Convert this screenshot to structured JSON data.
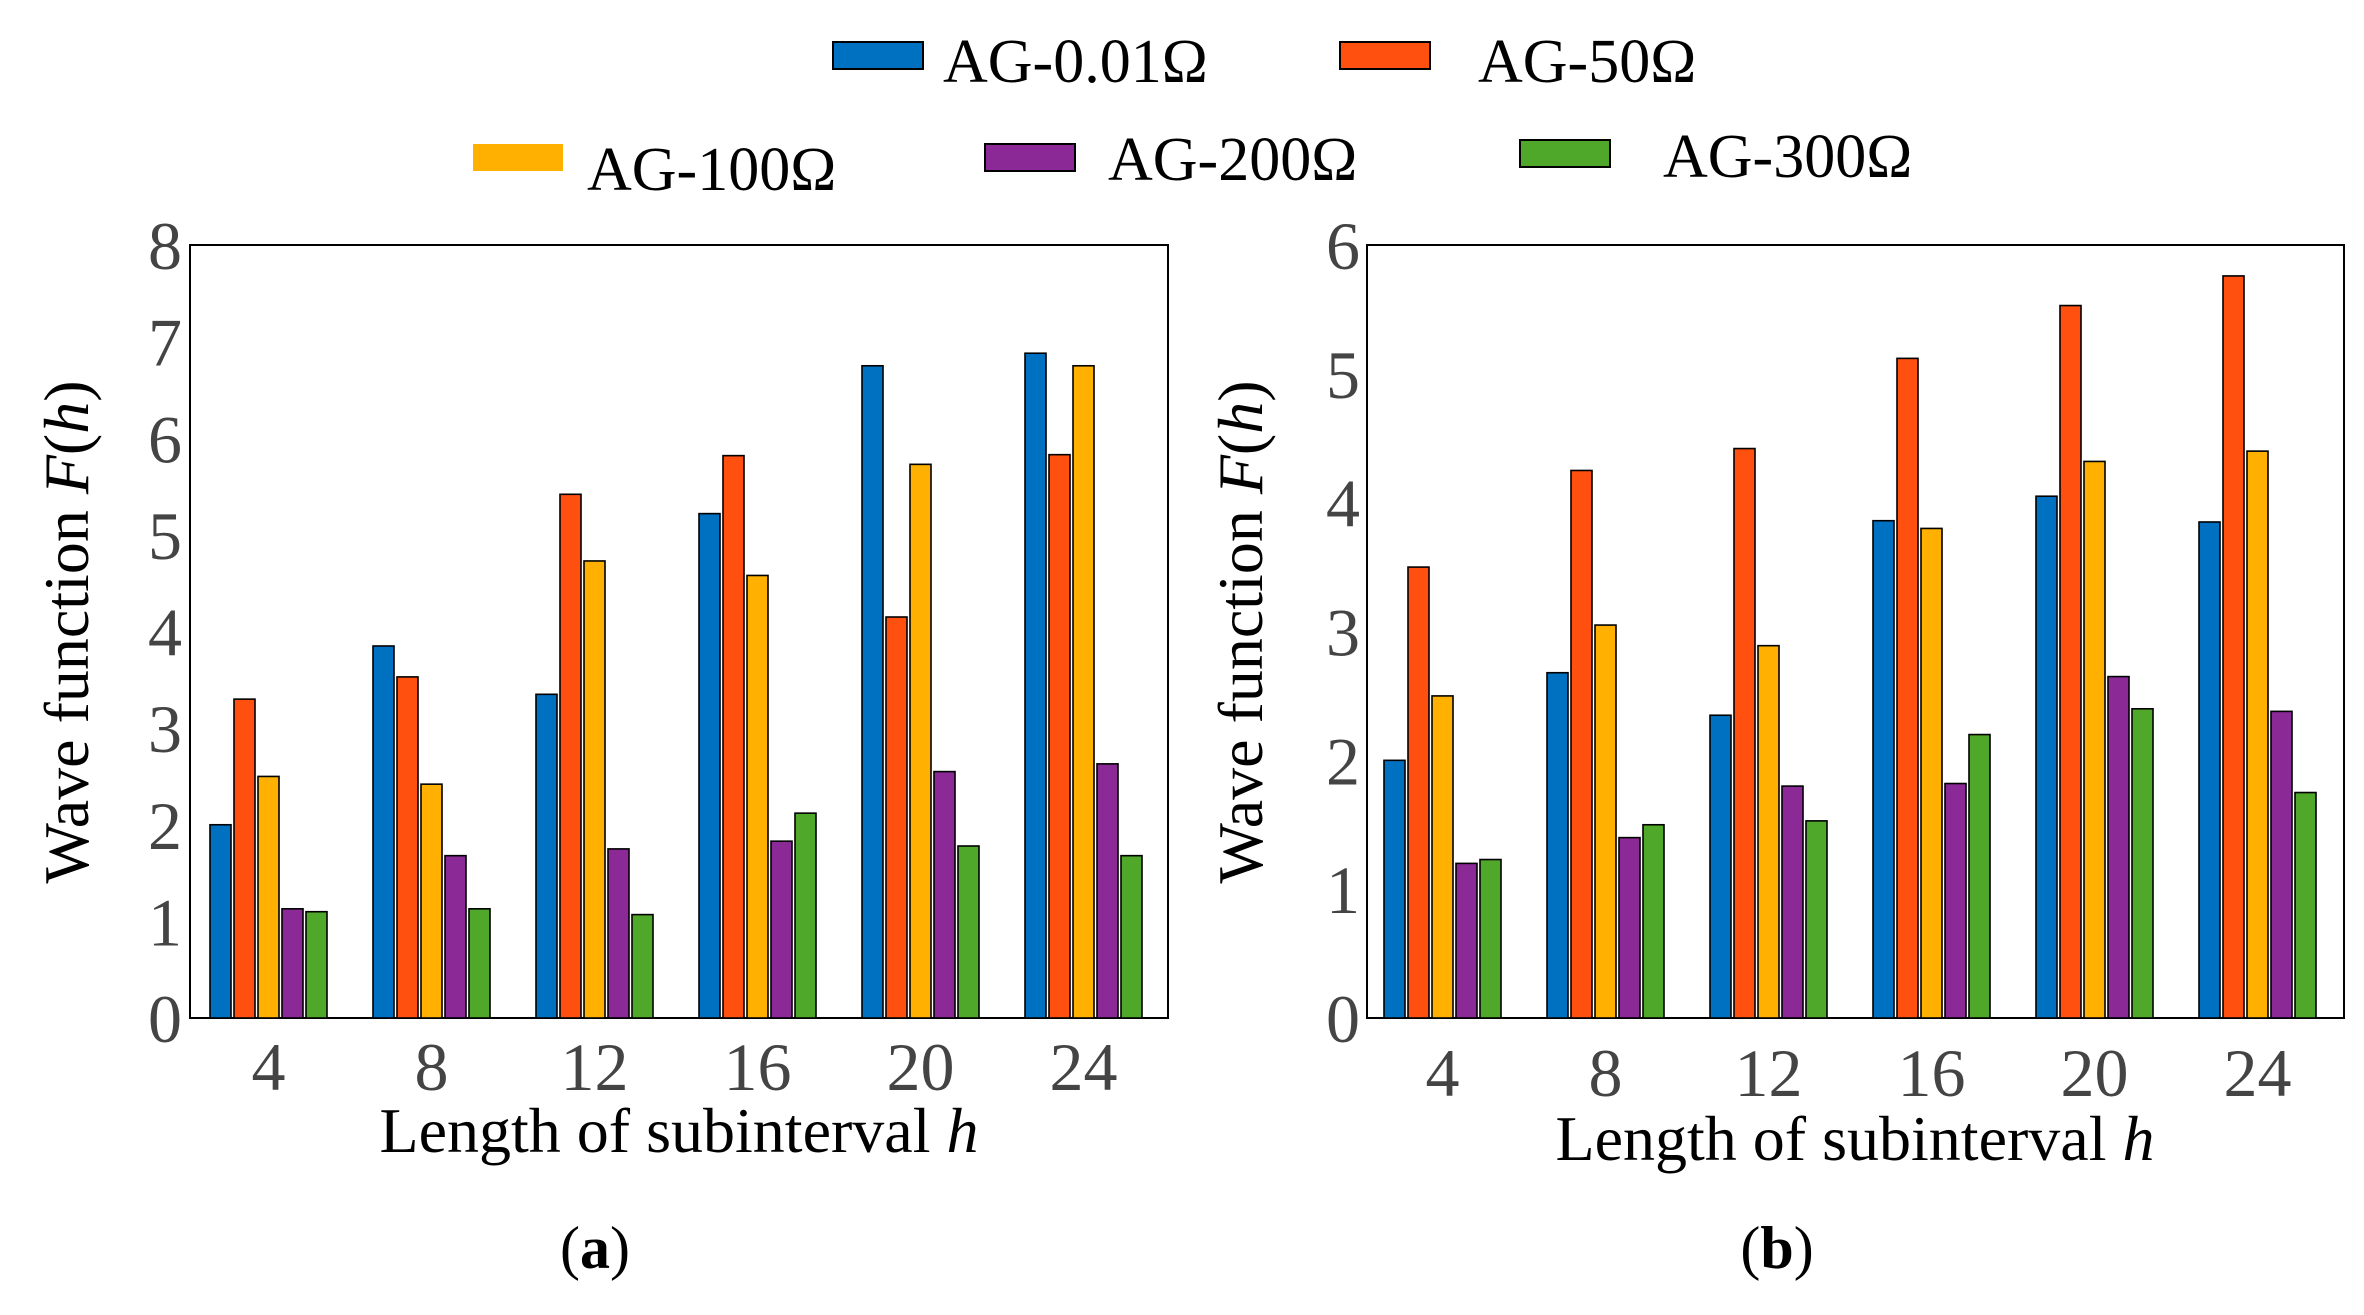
{
  "legend": [
    {
      "label": "AG-0.01Ω",
      "color": "#0070C0"
    },
    {
      "label": "AG-50Ω",
      "color": "#FF5010"
    },
    {
      "label": "AG-100Ω",
      "color": "#FFB000"
    },
    {
      "label": "AG-200Ω",
      "color": "#8B2A96"
    },
    {
      "label": "AG-300Ω",
      "color": "#4FA82A"
    }
  ],
  "chart_data": [
    {
      "type": "bar",
      "panel": "a",
      "caption_letter": "a",
      "categories": [
        "4",
        "8",
        "12",
        "16",
        "20",
        "24"
      ],
      "series": [
        {
          "name": "AG-0.01Ω",
          "values": [
            2.0,
            3.85,
            3.35,
            5.22,
            6.75,
            6.88
          ]
        },
        {
          "name": "AG-50Ω",
          "values": [
            3.3,
            3.53,
            5.42,
            5.82,
            4.15,
            5.83
          ]
        },
        {
          "name": "AG-100Ω",
          "values": [
            2.5,
            2.42,
            4.73,
            4.58,
            5.73,
            6.75
          ]
        },
        {
          "name": "AG-200Ω",
          "values": [
            1.13,
            1.68,
            1.75,
            1.83,
            2.55,
            2.63
          ]
        },
        {
          "name": "AG-300Ω",
          "values": [
            1.1,
            1.13,
            1.07,
            2.12,
            1.78,
            1.68
          ]
        }
      ],
      "title": "",
      "xlabel_text": "Length of subinterval ",
      "xlabel_var": "h",
      "ylabel_text": "Wave function ",
      "ylabel_var_f": "F",
      "ylabel_var_h": "h",
      "ylim": [
        0,
        8
      ],
      "yticks": [
        "0",
        "1",
        "2",
        "3",
        "4",
        "5",
        "6",
        "7",
        "8"
      ]
    },
    {
      "type": "bar",
      "panel": "b",
      "caption_letter": "b",
      "categories": [
        "4",
        "8",
        "12",
        "16",
        "20",
        "24"
      ],
      "series": [
        {
          "name": "AG-0.01Ω",
          "values": [
            2.0,
            2.68,
            2.35,
            3.86,
            4.05,
            3.85
          ]
        },
        {
          "name": "AG-50Ω",
          "values": [
            3.5,
            4.25,
            4.42,
            5.12,
            5.53,
            5.76
          ]
        },
        {
          "name": "AG-100Ω",
          "values": [
            2.5,
            3.05,
            2.89,
            3.8,
            4.32,
            4.4
          ]
        },
        {
          "name": "AG-200Ω",
          "values": [
            1.2,
            1.4,
            1.8,
            1.82,
            2.65,
            2.38
          ]
        },
        {
          "name": "AG-300Ω",
          "values": [
            1.23,
            1.5,
            1.53,
            2.2,
            2.4,
            1.75
          ]
        }
      ],
      "title": "",
      "xlabel_text": "Length of subinterval ",
      "xlabel_var": "h",
      "ylabel_text": "Wave function ",
      "ylabel_var_f": "F",
      "ylabel_var_h": "h",
      "ylim": [
        0,
        6
      ],
      "yticks": [
        "0",
        "1",
        "2",
        "3",
        "4",
        "5",
        "6"
      ]
    }
  ]
}
